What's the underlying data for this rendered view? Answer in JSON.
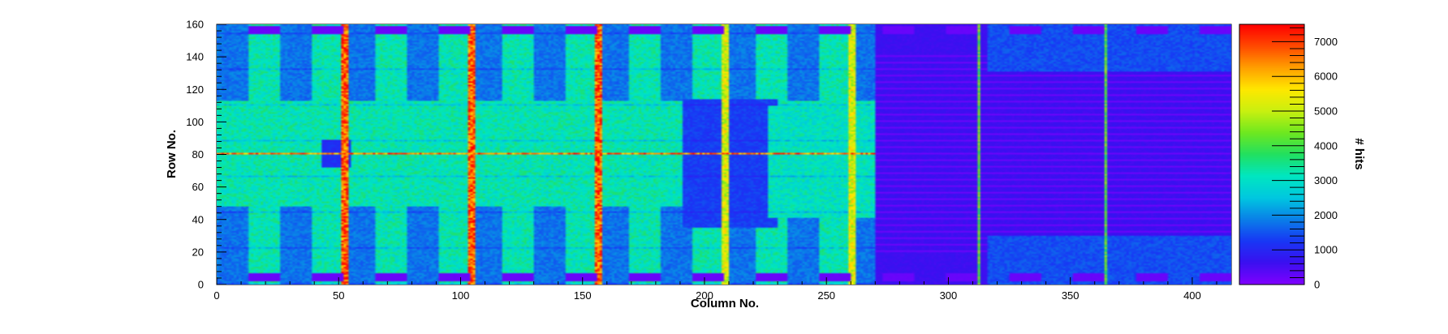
{
  "chart_data": {
    "type": "heatmap",
    "title": "",
    "xlabel": "Column No.",
    "ylabel": "Row No.",
    "zlabel": "# hits",
    "xlim": [
      0,
      416
    ],
    "ylim": [
      0,
      160
    ],
    "zlim": [
      0,
      7500
    ],
    "x_ticks": [
      0,
      50,
      100,
      150,
      200,
      250,
      300,
      350,
      400
    ],
    "y_ticks": [
      0,
      20,
      40,
      60,
      80,
      100,
      120,
      140,
      160
    ],
    "z_ticks": [
      0,
      1000,
      2000,
      3000,
      4000,
      5000,
      6000,
      7000
    ],
    "colormap": [
      "#7f00ff",
      "#3a10f0",
      "#1838f5",
      "#0a80e8",
      "#00c8e0",
      "#00e6c0",
      "#22e060",
      "#6ee820",
      "#c8f010",
      "#ffe800",
      "#ffa000",
      "#ff4a00",
      "#ff0000"
    ],
    "approx_regions": [
      {
        "region": "left block, columns 0-270",
        "typical_hits": 3200
      },
      {
        "region": "right block, columns 270-416",
        "typical_hits": 600
      },
      {
        "region": "column streaks at 52, 104, 156",
        "typical_hits": 6800
      },
      {
        "region": "column streaks at 208, 260",
        "typical_hits": 5200
      },
      {
        "region": "column streaks at 312, 364",
        "typical_hits": 4200
      },
      {
        "region": "row streak at 80",
        "typical_hits": 6500
      },
      {
        "region": "pad strips at rows 2-6 and 154-158",
        "typical_hits": 200
      }
    ]
  }
}
